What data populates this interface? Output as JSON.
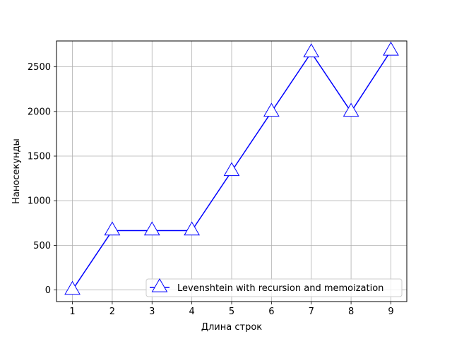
{
  "chart_data": {
    "type": "line",
    "title": "",
    "xlabel": "Длина строк",
    "ylabel": "Наносекунды",
    "xlim": [
      0.6,
      9.4
    ],
    "ylim": [
      -130,
      2790
    ],
    "x_ticks": [
      1,
      2,
      3,
      4,
      5,
      6,
      7,
      8,
      9
    ],
    "y_ticks": [
      0,
      500,
      1000,
      1500,
      2000,
      2500
    ],
    "grid": true,
    "legend_position": "lower-right",
    "series": [
      {
        "name": "Levenshtein with recursion and memoization",
        "color": "#0000ff",
        "marker": "triangle",
        "x": [
          1,
          2,
          3,
          4,
          5,
          6,
          7,
          8,
          9
        ],
        "values": [
          0,
          665,
          665,
          665,
          1330,
          1995,
          2660,
          1995,
          2680
        ]
      }
    ]
  }
}
